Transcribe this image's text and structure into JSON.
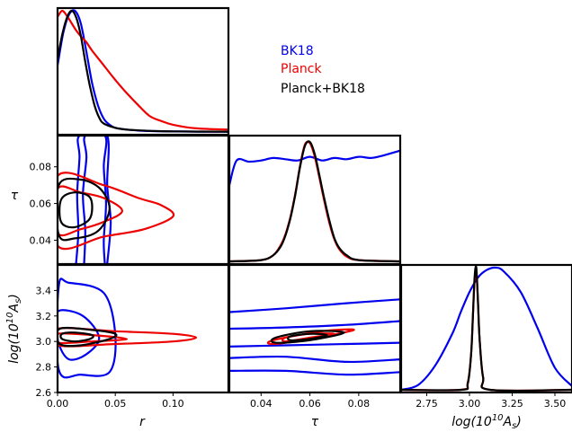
{
  "chart_data": {
    "type": "corner",
    "title": "",
    "parameters": [
      "r",
      "τ",
      "log(10^10 A_s)"
    ],
    "axis_labels": {
      "r": {
        "base": "r",
        "italic": true
      },
      "tau": {
        "base": "τ",
        "italic": true
      },
      "logAs": {
        "pre": "log(10",
        "sup": "10",
        "mid": "A",
        "sub": "s",
        "post": ")"
      }
    },
    "ranges": {
      "r": [
        0,
        0.148
      ],
      "tau": [
        0.027,
        0.097
      ],
      "logAs": [
        2.6,
        3.6
      ]
    },
    "ticks": {
      "r": [
        0.0,
        0.05,
        0.1
      ],
      "tau": [
        0.04,
        0.06,
        0.08
      ],
      "logAs_y": [
        2.6,
        2.8,
        3.0,
        3.2,
        3.4
      ],
      "logAs_x": [
        2.75,
        3.0,
        3.25,
        3.5
      ]
    },
    "tick_labels": {
      "r": [
        "0.00",
        "0.05",
        "0.10"
      ],
      "tau": [
        "0.04",
        "0.06",
        "0.08"
      ],
      "logAs_y": [
        "2.6",
        "2.8",
        "3.0",
        "3.2",
        "3.4"
      ],
      "logAs_x": [
        "2.75",
        "3.00",
        "3.25",
        "3.50"
      ]
    },
    "legend": [
      {
        "name": "BK18",
        "color": "#0000ee"
      },
      {
        "name": "Planck",
        "color": "#ee0000"
      },
      {
        "name": "Planck+BK18",
        "color": "#000000"
      }
    ],
    "legend_position": "top-right",
    "series": [
      {
        "name": "BK18",
        "color": "#0000ee",
        "pdf_r": {
          "x": [
            0,
            0.005,
            0.01,
            0.015,
            0.02,
            0.025,
            0.03,
            0.035,
            0.04,
            0.045,
            0.05,
            0.06,
            0.07,
            0.08,
            0.1,
            0.12,
            0.148
          ],
          "p": [
            0.55,
            0.82,
            0.97,
            1.0,
            0.9,
            0.66,
            0.4,
            0.22,
            0.11,
            0.06,
            0.035,
            0.02,
            0.012,
            0.008,
            0.005,
            0.003,
            0.002
          ]
        },
        "pdf_tau": {
          "x": [
            0.027,
            0.03,
            0.035,
            0.04,
            0.045,
            0.05,
            0.055,
            0.06,
            0.065,
            0.07,
            0.075,
            0.08,
            0.085,
            0.09,
            0.097
          ],
          "p": [
            0.62,
            0.82,
            0.81,
            0.82,
            0.84,
            0.83,
            0.82,
            0.85,
            0.82,
            0.84,
            0.83,
            0.85,
            0.84,
            0.86,
            0.9
          ]
        },
        "pdf_logAs": {
          "x": [
            2.6,
            2.7,
            2.8,
            2.9,
            2.95,
            3.0,
            3.05,
            3.1,
            3.15,
            3.2,
            3.3,
            3.4,
            3.5,
            3.6
          ],
          "p": [
            0.0,
            0.04,
            0.2,
            0.46,
            0.64,
            0.8,
            0.92,
            0.98,
            1.0,
            0.97,
            0.8,
            0.5,
            0.18,
            0.03
          ]
        },
        "contours_r_tau": [
          {
            "level": "68%",
            "points": [
              [
                0.016,
                0.027
              ],
              [
                0.018,
                0.045
              ],
              [
                0.017,
                0.065
              ],
              [
                0.019,
                0.085
              ],
              [
                0.019,
                0.097
              ],
              [
                0.041,
                0.097
              ],
              [
                0.04,
                0.08
              ],
              [
                0.042,
                0.06
              ],
              [
                0.04,
                0.04
              ],
              [
                0.041,
                0.027
              ]
            ]
          },
          {
            "level": "95%",
            "points": [
              [
                0.023,
                0.027
              ],
              [
                0.024,
                0.045
              ],
              [
                0.022,
                0.065
              ],
              [
                0.025,
                0.085
              ],
              [
                0.024,
                0.097
              ],
              [
                0.043,
                0.097
              ],
              [
                0.043,
                0.07
              ],
              [
                0.046,
                0.05
              ],
              [
                0.043,
                0.027
              ]
            ]
          }
        ],
        "contours_r_logAs": [
          {
            "level": "68%",
            "points": [
              [
                0.001,
                2.98
              ],
              [
                0.01,
                2.86
              ],
              [
                0.025,
                2.9
              ],
              [
                0.036,
                3.03
              ],
              [
                0.022,
                3.2
              ],
              [
                0.001,
                3.24
              ],
              [
                0.0,
                3.1
              ]
            ]
          },
          {
            "level": "95%",
            "points": [
              [
                0.001,
                2.78
              ],
              [
                0.02,
                2.74
              ],
              [
                0.045,
                2.76
              ],
              [
                0.05,
                3.05
              ],
              [
                0.04,
                3.38
              ],
              [
                0.01,
                3.46
              ],
              [
                0.001,
                3.43
              ]
            ]
          }
        ],
        "contours_tau_logAs": [
          {
            "level": "68%",
            "points": [
              [
                0.027,
                2.96
              ],
              [
                0.05,
                2.97
              ],
              [
                0.075,
                2.98
              ],
              [
                0.097,
                2.99
              ]
            ]
          },
          {
            "level": "68%",
            "points": [
              [
                0.027,
                3.1
              ],
              [
                0.05,
                3.11
              ],
              [
                0.075,
                3.13
              ],
              [
                0.097,
                3.16
              ]
            ]
          },
          {
            "level": "95%",
            "points": [
              [
                0.027,
                2.87
              ],
              [
                0.05,
                2.88
              ],
              [
                0.075,
                2.84
              ],
              [
                0.097,
                2.86
              ]
            ]
          },
          {
            "level": "95%",
            "points": [
              [
                0.027,
                3.23
              ],
              [
                0.05,
                3.26
              ],
              [
                0.075,
                3.3
              ],
              [
                0.097,
                3.33
              ]
            ]
          },
          {
            "level": "99%",
            "points": [
              [
                0.027,
                2.77
              ],
              [
                0.05,
                2.77
              ],
              [
                0.075,
                2.74
              ],
              [
                0.097,
                2.76
              ]
            ]
          }
        ]
      },
      {
        "name": "Planck",
        "color": "#ee0000",
        "pdf_r": {
          "x": [
            0,
            0.004,
            0.008,
            0.012,
            0.016,
            0.02,
            0.025,
            0.03,
            0.04,
            0.05,
            0.06,
            0.07,
            0.08,
            0.09,
            0.1,
            0.12,
            0.148
          ],
          "p": [
            0.95,
            1.0,
            0.96,
            0.9,
            0.84,
            0.79,
            0.74,
            0.67,
            0.55,
            0.43,
            0.32,
            0.22,
            0.13,
            0.09,
            0.06,
            0.03,
            0.02
          ]
        },
        "pdf_tau": {
          "x": [
            0.027,
            0.04,
            0.045,
            0.048,
            0.05,
            0.052,
            0.054,
            0.056,
            0.058,
            0.06,
            0.062,
            0.064,
            0.066,
            0.068,
            0.07,
            0.072,
            0.075,
            0.08,
            0.097
          ],
          "p": [
            0.0,
            0.01,
            0.05,
            0.13,
            0.22,
            0.36,
            0.55,
            0.78,
            0.95,
            0.96,
            0.85,
            0.67,
            0.48,
            0.31,
            0.18,
            0.1,
            0.04,
            0.01,
            0.0
          ]
        },
        "pdf_logAs": {
          "x": [
            2.6,
            2.95,
            2.99,
            3.01,
            3.02,
            3.03,
            3.04,
            3.05,
            3.06,
            3.08,
            3.12,
            3.6
          ],
          "p": [
            0.0,
            0.0,
            0.06,
            0.3,
            0.6,
            0.9,
            0.97,
            0.7,
            0.4,
            0.1,
            0.0,
            0.0
          ]
        },
        "contours_r_tau": [
          {
            "level": "68%",
            "points": [
              [
                0.0,
                0.044
              ],
              [
                0.02,
                0.046
              ],
              [
                0.04,
                0.05
              ],
              [
                0.056,
                0.056
              ],
              [
                0.04,
                0.063
              ],
              [
                0.02,
                0.066
              ],
              [
                0.0,
                0.068
              ]
            ]
          },
          {
            "level": "95%",
            "points": [
              [
                0.0,
                0.037
              ],
              [
                0.04,
                0.042
              ],
              [
                0.075,
                0.046
              ],
              [
                0.1,
                0.053
              ],
              [
                0.09,
                0.059
              ],
              [
                0.07,
                0.063
              ],
              [
                0.04,
                0.07
              ],
              [
                0.0,
                0.075
              ]
            ]
          }
        ],
        "contours_r_logAs": [
          {
            "level": "68%",
            "points": [
              [
                0.0,
                2.99
              ],
              [
                0.03,
                3.0
              ],
              [
                0.06,
                3.02
              ],
              [
                0.03,
                3.05
              ],
              [
                0.0,
                3.06
              ]
            ]
          },
          {
            "level": "95%",
            "points": [
              [
                0.0,
                2.97
              ],
              [
                0.05,
                2.98
              ],
              [
                0.1,
                3.0
              ],
              [
                0.12,
                3.03
              ],
              [
                0.1,
                3.06
              ],
              [
                0.05,
                3.08
              ],
              [
                0.0,
                3.1
              ]
            ]
          }
        ],
        "contours_tau_logAs": [
          {
            "level": "68%",
            "points": [
              [
                0.05,
                3.0
              ],
              [
                0.06,
                3.03
              ],
              [
                0.07,
                3.06
              ],
              [
                0.06,
                3.06
              ],
              [
                0.05,
                3.03
              ]
            ]
          },
          {
            "level": "95%",
            "points": [
              [
                0.045,
                2.98
              ],
              [
                0.06,
                3.02
              ],
              [
                0.078,
                3.09
              ],
              [
                0.065,
                3.08
              ],
              [
                0.045,
                3.01
              ]
            ]
          }
        ]
      },
      {
        "name": "Planck+BK18",
        "color": "#000000",
        "pdf_r": {
          "x": [
            0,
            0.004,
            0.008,
            0.012,
            0.016,
            0.02,
            0.024,
            0.028,
            0.032,
            0.036,
            0.04,
            0.05,
            0.06,
            0.08,
            0.1,
            0.148
          ],
          "p": [
            0.6,
            0.8,
            0.94,
            1.0,
            0.95,
            0.8,
            0.58,
            0.38,
            0.22,
            0.12,
            0.07,
            0.035,
            0.02,
            0.01,
            0.005,
            0.003
          ]
        },
        "pdf_tau": {
          "x": [
            0.027,
            0.04,
            0.045,
            0.048,
            0.05,
            0.052,
            0.054,
            0.056,
            0.058,
            0.06,
            0.062,
            0.064,
            0.066,
            0.068,
            0.07,
            0.072,
            0.075,
            0.08,
            0.097
          ],
          "p": [
            0.0,
            0.01,
            0.05,
            0.12,
            0.21,
            0.35,
            0.54,
            0.77,
            0.94,
            0.97,
            0.87,
            0.69,
            0.5,
            0.33,
            0.19,
            0.11,
            0.05,
            0.01,
            0.0
          ]
        },
        "pdf_logAs": {
          "x": [
            2.6,
            2.95,
            2.99,
            3.01,
            3.02,
            3.03,
            3.04,
            3.05,
            3.06,
            3.08,
            3.12,
            3.6
          ],
          "p": [
            0.0,
            0.0,
            0.05,
            0.3,
            0.6,
            0.92,
            1.0,
            0.72,
            0.4,
            0.1,
            0.0,
            0.0
          ]
        },
        "contours_r_tau": [
          {
            "level": "68%",
            "points": [
              [
                0.003,
                0.05
              ],
              [
                0.014,
                0.047
              ],
              [
                0.027,
                0.051
              ],
              [
                0.03,
                0.058
              ],
              [
                0.027,
                0.064
              ],
              [
                0.014,
                0.066
              ],
              [
                0.003,
                0.062
              ]
            ]
          },
          {
            "level": "95%",
            "points": [
              [
                0.001,
                0.043
              ],
              [
                0.015,
                0.041
              ],
              [
                0.035,
                0.045
              ],
              [
                0.045,
                0.057
              ],
              [
                0.037,
                0.068
              ],
              [
                0.02,
                0.073
              ],
              [
                0.001,
                0.07
              ]
            ]
          }
        ],
        "contours_r_logAs": [
          {
            "level": "68%",
            "points": [
              [
                0.004,
                3.02
              ],
              [
                0.015,
                3.0
              ],
              [
                0.028,
                3.02
              ],
              [
                0.03,
                3.05
              ],
              [
                0.015,
                3.07
              ],
              [
                0.004,
                3.06
              ]
            ]
          },
          {
            "level": "95%",
            "points": [
              [
                0.002,
                2.98
              ],
              [
                0.02,
                2.97
              ],
              [
                0.045,
                3.02
              ],
              [
                0.05,
                3.06
              ],
              [
                0.03,
                3.09
              ],
              [
                0.002,
                3.1
              ]
            ]
          }
        ],
        "contours_tau_logAs": [
          {
            "level": "68%",
            "points": [
              [
                0.052,
                3.01
              ],
              [
                0.06,
                3.02
              ],
              [
                0.067,
                3.05
              ],
              [
                0.06,
                3.06
              ],
              [
                0.052,
                3.04
              ]
            ]
          },
          {
            "level": "95%",
            "points": [
              [
                0.046,
                2.99
              ],
              [
                0.06,
                3.01
              ],
              [
                0.074,
                3.07
              ],
              [
                0.06,
                3.08
              ],
              [
                0.046,
                3.03
              ]
            ]
          }
        ]
      }
    ]
  }
}
